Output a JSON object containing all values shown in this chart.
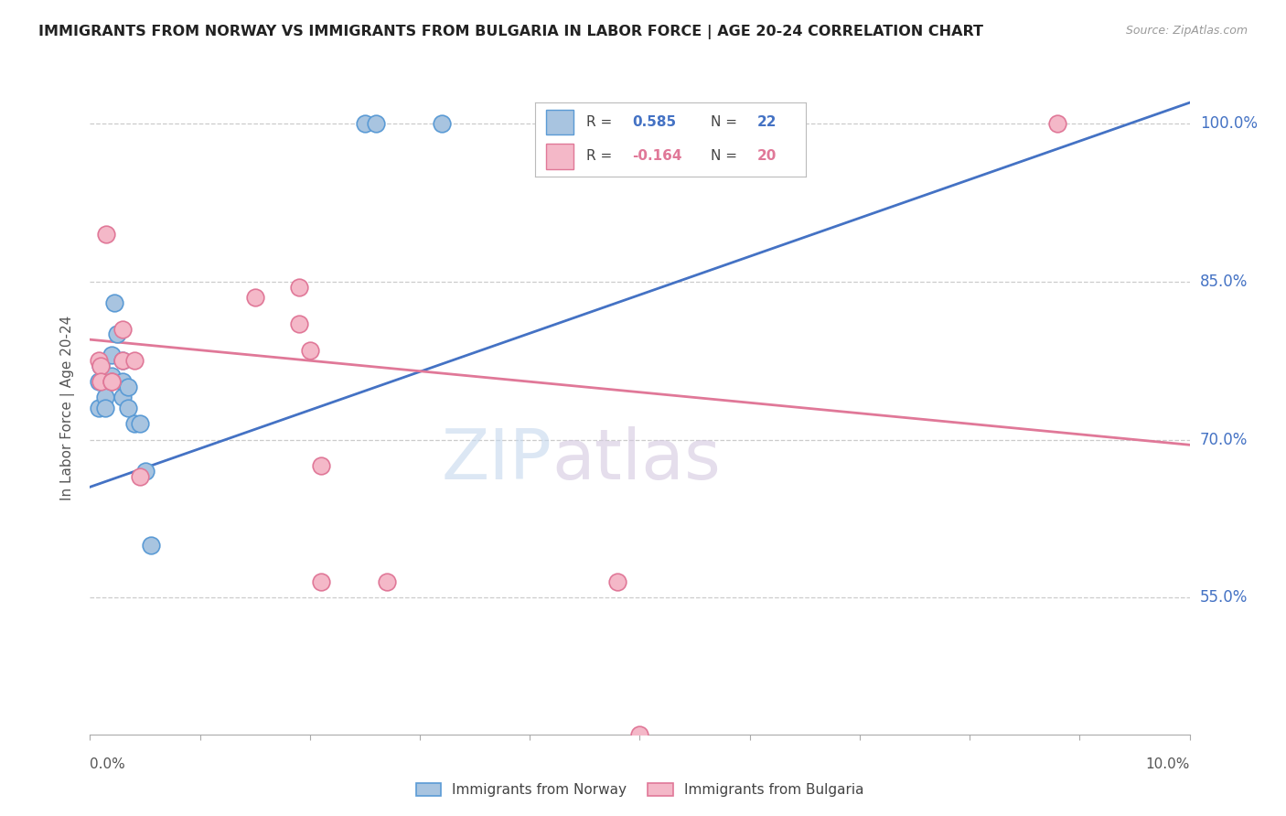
{
  "title": "IMMIGRANTS FROM NORWAY VS IMMIGRANTS FROM BULGARIA IN LABOR FORCE | AGE 20-24 CORRELATION CHART",
  "source": "Source: ZipAtlas.com",
  "ylabel": "In Labor Force | Age 20-24",
  "ytick_labels": [
    "100.0%",
    "85.0%",
    "70.0%",
    "55.0%"
  ],
  "ytick_values": [
    1.0,
    0.85,
    0.7,
    0.55
  ],
  "xlim": [
    0.0,
    0.1
  ],
  "ylim": [
    0.42,
    1.04
  ],
  "norway_color": "#a8c4e0",
  "norway_edge_color": "#5b9bd5",
  "bulgaria_color": "#f4b8c8",
  "bulgaria_edge_color": "#e07898",
  "norway_line_color": "#4472c4",
  "bulgaria_line_color": "#e07898",
  "watermark_zip": "ZIP",
  "watermark_atlas": "atlas",
  "norway_x": [
    0.0008,
    0.0008,
    0.001,
    0.0012,
    0.0014,
    0.0014,
    0.002,
    0.002,
    0.0022,
    0.0025,
    0.003,
    0.003,
    0.003,
    0.0035,
    0.0035,
    0.004,
    0.0045,
    0.005,
    0.0055,
    0.025,
    0.026,
    0.032
  ],
  "norway_y": [
    0.755,
    0.73,
    0.77,
    0.755,
    0.74,
    0.73,
    0.78,
    0.76,
    0.83,
    0.8,
    0.775,
    0.755,
    0.74,
    0.75,
    0.73,
    0.715,
    0.715,
    0.67,
    0.6,
    1.0,
    1.0,
    1.0
  ],
  "bulgaria_x": [
    0.0008,
    0.001,
    0.001,
    0.0015,
    0.002,
    0.002,
    0.003,
    0.003,
    0.004,
    0.0045,
    0.015,
    0.019,
    0.019,
    0.02,
    0.021,
    0.021,
    0.027,
    0.048,
    0.05,
    0.088
  ],
  "bulgaria_y": [
    0.775,
    0.77,
    0.755,
    0.895,
    0.755,
    0.755,
    0.805,
    0.775,
    0.775,
    0.665,
    0.835,
    0.845,
    0.81,
    0.785,
    0.675,
    0.565,
    0.565,
    0.565,
    0.42,
    1.0
  ],
  "norway_trend_x": [
    0.0,
    0.1
  ],
  "norway_trend_y": [
    0.655,
    1.02
  ],
  "bulgaria_trend_x": [
    0.0,
    0.1
  ],
  "bulgaria_trend_y": [
    0.795,
    0.695
  ]
}
